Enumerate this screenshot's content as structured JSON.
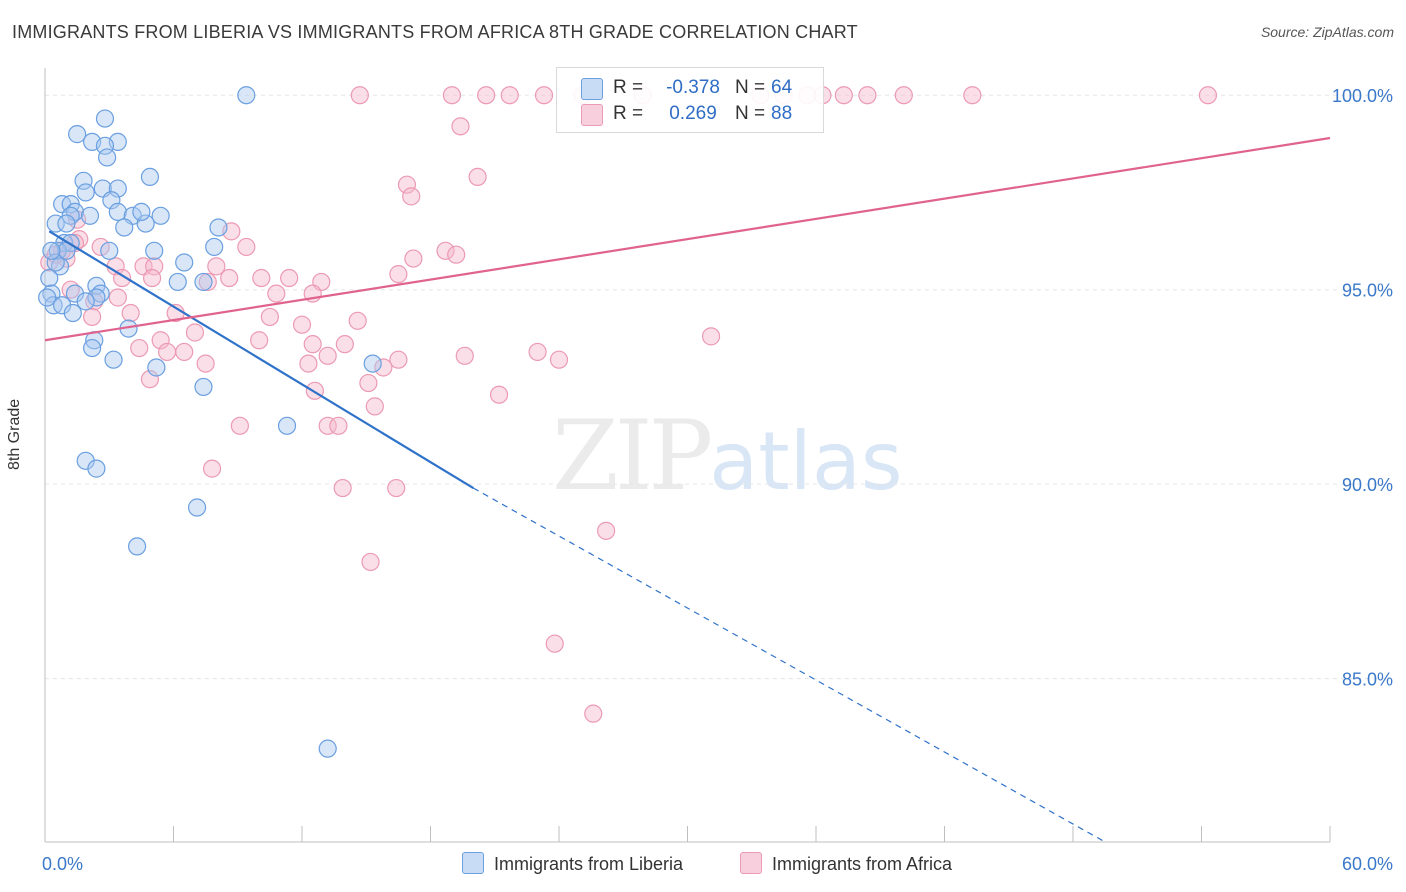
{
  "title": "IMMIGRANTS FROM LIBERIA VS IMMIGRANTS FROM AFRICA 8TH GRADE CORRELATION CHART",
  "source": "Source: ZipAtlas.com",
  "watermark": {
    "zip": "ZIP",
    "atlas": "atlas"
  },
  "colors": {
    "liberia_fill": "#a9c8f0",
    "liberia_stroke": "#6a9fe0",
    "liberia_line": "#2f72c9",
    "africa_fill": "#f5b8cb",
    "africa_stroke": "#ec9ab3",
    "africa_line": "#e0638e",
    "grid": "#e6e6e6",
    "axis_text": "#3a78c9"
  },
  "legend": {
    "rows": [
      {
        "r_label": "R =",
        "r_value": "-0.378",
        "n_label": "N =",
        "n_value": "64"
      },
      {
        "r_label": "R =",
        "r_value": "0.269",
        "n_label": "N =",
        "n_value": "88"
      }
    ]
  },
  "chart_data": {
    "type": "scatter",
    "title": "IMMIGRANTS FROM LIBERIA VS IMMIGRANTS FROM AFRICA 8TH GRADE CORRELATION CHART",
    "xlabel": "",
    "ylabel": "8th Grade",
    "xlim": [
      0,
      60
    ],
    "ylim": [
      80.8,
      100.7
    ],
    "x_tick_labels": [
      "0.0%",
      "60.0%"
    ],
    "y_ticks": [
      85,
      90,
      95,
      100
    ],
    "y_tick_labels": [
      "85.0%",
      "90.0%",
      "95.0%",
      "100.0%"
    ],
    "series": [
      {
        "name": "Immigrants from Liberia",
        "r": -0.378,
        "n": 64,
        "trend": {
          "x": [
            0.2,
            20.0
          ],
          "y": [
            96.5,
            89.9
          ],
          "dashed_to": {
            "x": 49.5,
            "y": 80.8
          }
        },
        "points": [
          [
            9.4,
            100.0
          ],
          [
            2.8,
            99.4
          ],
          [
            1.5,
            99.0
          ],
          [
            2.2,
            98.8
          ],
          [
            3.4,
            98.8
          ],
          [
            2.8,
            98.7
          ],
          [
            2.9,
            98.4
          ],
          [
            1.8,
            97.8
          ],
          [
            4.9,
            97.9
          ],
          [
            2.7,
            97.6
          ],
          [
            3.4,
            97.6
          ],
          [
            1.9,
            97.5
          ],
          [
            3.1,
            97.3
          ],
          [
            0.8,
            97.2
          ],
          [
            1.2,
            97.2
          ],
          [
            1.4,
            97.0
          ],
          [
            3.4,
            97.0
          ],
          [
            1.2,
            96.9
          ],
          [
            2.1,
            96.9
          ],
          [
            4.1,
            96.9
          ],
          [
            5.4,
            96.9
          ],
          [
            0.5,
            96.7
          ],
          [
            1.0,
            96.7
          ],
          [
            4.7,
            96.7
          ],
          [
            3.7,
            96.6
          ],
          [
            8.1,
            96.6
          ],
          [
            0.9,
            96.2
          ],
          [
            1.2,
            96.2
          ],
          [
            0.6,
            96.0
          ],
          [
            3.0,
            96.0
          ],
          [
            5.1,
            96.0
          ],
          [
            7.9,
            96.1
          ],
          [
            6.5,
            95.7
          ],
          [
            0.7,
            95.6
          ],
          [
            0.2,
            95.3
          ],
          [
            6.2,
            95.2
          ],
          [
            7.4,
            95.2
          ],
          [
            2.4,
            95.1
          ],
          [
            2.6,
            94.9
          ],
          [
            0.3,
            94.9
          ],
          [
            1.4,
            94.9
          ],
          [
            2.4,
            94.8
          ],
          [
            1.9,
            94.7
          ],
          [
            0.4,
            94.6
          ],
          [
            0.8,
            94.6
          ],
          [
            1.3,
            94.4
          ],
          [
            3.9,
            94.0
          ],
          [
            2.3,
            93.7
          ],
          [
            2.2,
            93.5
          ],
          [
            3.2,
            93.2
          ],
          [
            5.2,
            93.0
          ],
          [
            15.3,
            93.1
          ],
          [
            7.4,
            92.5
          ],
          [
            11.3,
            91.5
          ],
          [
            1.9,
            90.6
          ],
          [
            2.4,
            90.4
          ],
          [
            7.1,
            89.4
          ],
          [
            4.3,
            88.4
          ],
          [
            13.2,
            83.2
          ],
          [
            0.1,
            94.8
          ],
          [
            0.5,
            95.7
          ],
          [
            1.0,
            96.0
          ],
          [
            4.5,
            97.0
          ],
          [
            0.3,
            96.0
          ]
        ]
      },
      {
        "name": "Immigrants from Africa",
        "r": 0.269,
        "n": 88,
        "trend": {
          "x": [
            0.0,
            60.0
          ],
          "y": [
            93.7,
            98.9
          ]
        },
        "points": [
          [
            14.7,
            100.0
          ],
          [
            19.0,
            100.0
          ],
          [
            20.6,
            100.0
          ],
          [
            21.7,
            100.0
          ],
          [
            23.3,
            100.0
          ],
          [
            25.1,
            100.0
          ],
          [
            27.9,
            100.0
          ],
          [
            33.4,
            100.0
          ],
          [
            34.5,
            100.0
          ],
          [
            35.6,
            100.0
          ],
          [
            36.3,
            100.0
          ],
          [
            37.3,
            100.0
          ],
          [
            38.4,
            100.0
          ],
          [
            40.1,
            100.0
          ],
          [
            43.3,
            100.0
          ],
          [
            54.3,
            100.0
          ],
          [
            19.4,
            99.2
          ],
          [
            20.2,
            97.9
          ],
          [
            16.9,
            97.7
          ],
          [
            17.1,
            97.4
          ],
          [
            1.5,
            96.8
          ],
          [
            8.7,
            96.5
          ],
          [
            1.6,
            96.3
          ],
          [
            9.4,
            96.1
          ],
          [
            18.7,
            96.0
          ],
          [
            19.2,
            95.9
          ],
          [
            1.0,
            95.8
          ],
          [
            17.2,
            95.8
          ],
          [
            8.0,
            95.6
          ],
          [
            3.3,
            95.6
          ],
          [
            4.6,
            95.6
          ],
          [
            5.1,
            95.6
          ],
          [
            16.5,
            95.4
          ],
          [
            8.6,
            95.3
          ],
          [
            10.1,
            95.3
          ],
          [
            11.4,
            95.3
          ],
          [
            12.9,
            95.2
          ],
          [
            3.6,
            95.3
          ],
          [
            5.0,
            95.3
          ],
          [
            7.6,
            95.2
          ],
          [
            1.2,
            95.0
          ],
          [
            10.8,
            94.9
          ],
          [
            12.5,
            94.9
          ],
          [
            3.4,
            94.8
          ],
          [
            2.3,
            94.7
          ],
          [
            4.0,
            94.4
          ],
          [
            6.1,
            94.4
          ],
          [
            10.5,
            94.3
          ],
          [
            2.2,
            94.3
          ],
          [
            14.6,
            94.2
          ],
          [
            12.0,
            94.1
          ],
          [
            7.0,
            93.9
          ],
          [
            31.1,
            93.8
          ],
          [
            5.4,
            93.7
          ],
          [
            10.0,
            93.7
          ],
          [
            12.5,
            93.6
          ],
          [
            14.0,
            93.6
          ],
          [
            4.4,
            93.5
          ],
          [
            6.5,
            93.4
          ],
          [
            5.7,
            93.4
          ],
          [
            19.6,
            93.3
          ],
          [
            23.0,
            93.4
          ],
          [
            13.2,
            93.3
          ],
          [
            24.0,
            93.2
          ],
          [
            16.5,
            93.2
          ],
          [
            7.5,
            93.1
          ],
          [
            12.3,
            93.1
          ],
          [
            15.8,
            93.0
          ],
          [
            15.1,
            92.6
          ],
          [
            4.9,
            92.7
          ],
          [
            12.6,
            92.4
          ],
          [
            21.2,
            92.3
          ],
          [
            15.4,
            92.0
          ],
          [
            9.1,
            91.5
          ],
          [
            13.2,
            91.5
          ],
          [
            13.7,
            91.5
          ],
          [
            7.8,
            90.4
          ],
          [
            13.9,
            89.9
          ],
          [
            16.4,
            89.9
          ],
          [
            26.2,
            88.8
          ],
          [
            15.2,
            88.0
          ],
          [
            23.8,
            85.9
          ],
          [
            25.6,
            84.1
          ],
          [
            0.2,
            95.7
          ],
          [
            0.8,
            96.0
          ],
          [
            1.4,
            96.2
          ],
          [
            2.6,
            96.1
          ],
          [
            0.5,
            95.9
          ]
        ]
      }
    ],
    "legend": [
      "Immigrants from Liberia",
      "Immigrants from Africa"
    ]
  }
}
